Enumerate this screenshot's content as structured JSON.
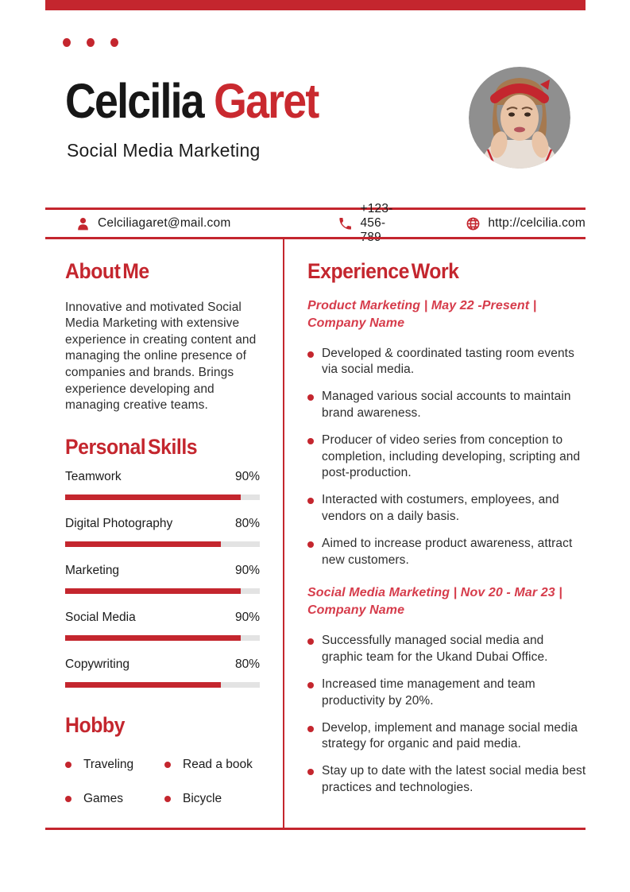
{
  "theme": {
    "accent_red": "#C4262E",
    "name_red": "#C9292F",
    "job_title_red": "#D63C4B",
    "bar_track_gray": "#E3E3E3",
    "photo_bg_gray": "#8F8F8F"
  },
  "header": {
    "name_first": "Celcilia",
    "name_last": "Garet",
    "subtitle": "Social Media Marketing",
    "photo": "portrait of woman with red headband on gray background"
  },
  "contact": {
    "email": {
      "icon": "person-icon",
      "value": "Celciliagaret@mail.com"
    },
    "phone": {
      "icon": "phone-icon",
      "value": "+123-456-789"
    },
    "website": {
      "icon": "globe-icon",
      "value": "http://celcilia.com"
    }
  },
  "about": {
    "heading": "About Me",
    "text": "Innovative and motivated Social Media Marketing with extensive experience in creating content and managing the online presence of companies and brands. Brings experience developing and managing creative teams."
  },
  "skills": {
    "heading": "Personal Skills",
    "items": [
      {
        "label": "Teamwork",
        "percent": "90%",
        "value": 90
      },
      {
        "label": "Digital Photography",
        "percent": "80%",
        "value": 80
      },
      {
        "label": "Marketing",
        "percent": "90%",
        "value": 90
      },
      {
        "label": "Social Media",
        "percent": "90%",
        "value": 90
      },
      {
        "label": "Copywriting",
        "percent": "80%",
        "value": 80
      }
    ]
  },
  "hobby": {
    "heading": "Hobby",
    "items": [
      "Traveling",
      "Read a book",
      "Games",
      "Bicycle"
    ]
  },
  "experience": {
    "heading": "Experience Work",
    "jobs": [
      {
        "title": "Product Marketing | May 22 -Present | Company Name",
        "bullets": [
          "Developed & coordinated tasting room events via social media.",
          "Managed various social accounts to maintain brand awareness.",
          "Producer of video series from conception to completion, including developing, scripting and post-production.",
          "Interacted with costumers, employees, and vendors on a daily basis.",
          "Aimed to increase product awareness, attract new customers."
        ]
      },
      {
        "title": "Social Media Marketing | Nov 20 - Mar 23 | Company Name",
        "bullets": [
          "Successfully managed social media and graphic team for the Ukand Dubai Office.",
          "Increased time management and team productivity by 20%.",
          "Develop, implement and manage social media strategy for organic and paid media.",
          "Stay up to date with the latest social media best practices and technologies."
        ]
      }
    ]
  }
}
